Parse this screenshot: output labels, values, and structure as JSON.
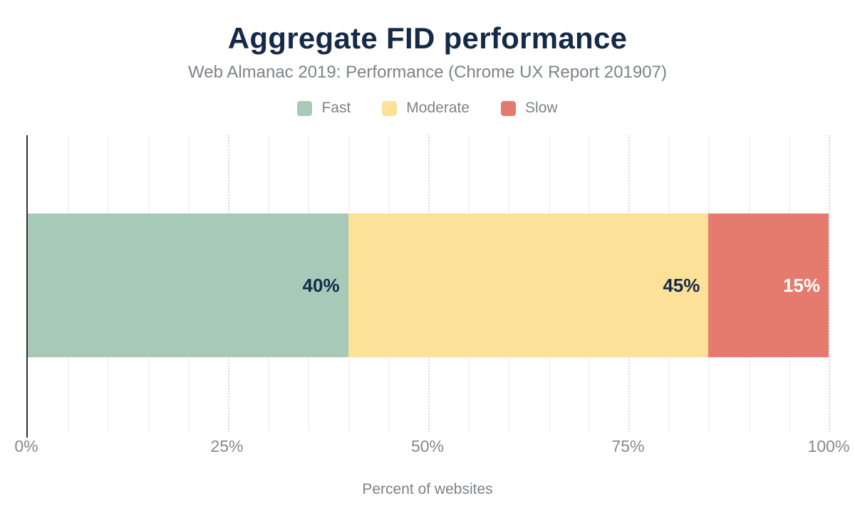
{
  "chart_data": {
    "type": "bar",
    "stacked": true,
    "orientation": "horizontal",
    "title": "Aggregate FID performance",
    "subtitle": "Web Almanac 2019: Performance (Chrome UX Report 201907)",
    "xlabel": "Percent of websites",
    "xlim": [
      0,
      100
    ],
    "x_tick_values": [
      0,
      25,
      50,
      75,
      100
    ],
    "x_tick_labels": [
      "0%",
      "25%",
      "50%",
      "75%",
      "100%"
    ],
    "minor_grid_step": 5,
    "major_grid_step": 25,
    "grid": true,
    "legend_position": "top",
    "series": [
      {
        "name": "Fast",
        "value": 40,
        "data_label": "40%",
        "color": "#a7c9b8",
        "label_color": "#152a49"
      },
      {
        "name": "Moderate",
        "value": 45,
        "data_label": "45%",
        "color": "#fde199",
        "label_color": "#152a49"
      },
      {
        "name": "Slow",
        "value": 15,
        "data_label": "15%",
        "color": "#e57a6e",
        "label_color": "#ffffff"
      }
    ]
  },
  "colors": {
    "title": "#152a49",
    "muted_text": "#7d8287",
    "axis_line": "#2c3036",
    "minor_grid": "#f3f3f3",
    "major_grid": "#d9d9d9",
    "background": "#ffffff"
  }
}
